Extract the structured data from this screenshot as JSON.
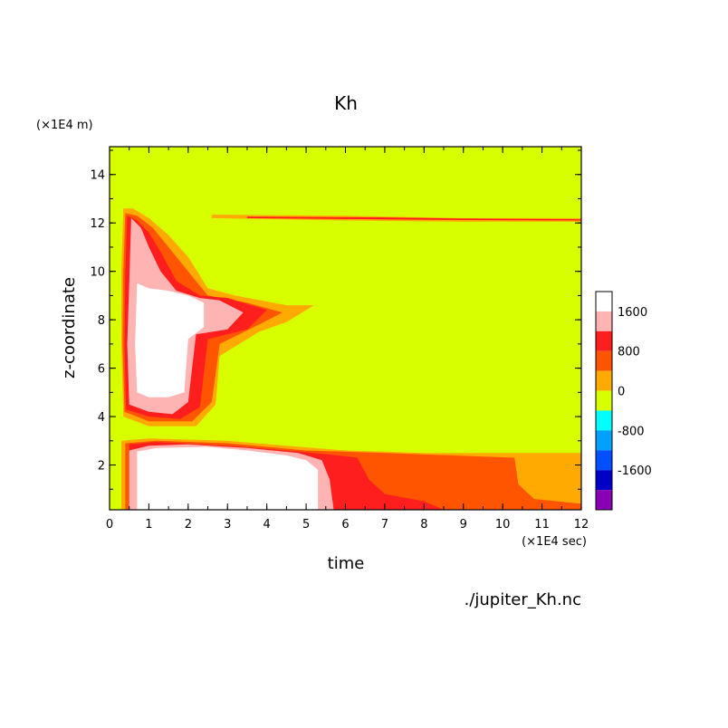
{
  "chart_data": {
    "type": "heatmap",
    "title": "Kh",
    "xlabel": "time",
    "ylabel": "z-coordinate",
    "x_unit": "(×1E4 sec)",
    "y_unit": "(×1E4 m)",
    "source": "./jupiter_Kh.nc",
    "xlim": [
      0,
      12
    ],
    "ylim": [
      0.15,
      15.15
    ],
    "x_ticks": [
      0,
      1,
      2,
      3,
      4,
      5,
      6,
      7,
      8,
      9,
      10,
      11,
      12
    ],
    "y_ticks": [
      2,
      4,
      6,
      8,
      10,
      12,
      14
    ],
    "colorbar": {
      "levels": [
        -2000,
        -1600,
        -1200,
        -800,
        -400,
        0,
        400,
        800,
        1200,
        1600,
        2000
      ],
      "colors": [
        "#8a00b4",
        "#0000c8",
        "#0050ff",
        "#00a0ff",
        "#00ffff",
        "#d8ff00",
        "#ffaa00",
        "#ff5500",
        "#ff1e1e",
        "#ffb4b4"
      ],
      "tick_labels": [
        "1600",
        "800",
        "0",
        "-800",
        "-1600"
      ],
      "tick_values": [
        1600,
        800,
        0,
        -800,
        -1600
      ],
      "above_max_color": "#ffffff"
    },
    "background_color": "#d8ff00",
    "regions": [
      {
        "value": 400,
        "polygon": [
          [
            0.3,
            0.15
          ],
          [
            0.3,
            3.0
          ],
          [
            1.0,
            3.1
          ],
          [
            3.0,
            3.0
          ],
          [
            4.5,
            2.8
          ],
          [
            6.0,
            2.6
          ],
          [
            8.0,
            2.5
          ],
          [
            12.0,
            2.5
          ],
          [
            12.0,
            0.15
          ]
        ]
      },
      {
        "value": 800,
        "polygon": [
          [
            0.4,
            0.15
          ],
          [
            0.4,
            2.9
          ],
          [
            1.2,
            3.0
          ],
          [
            3.0,
            2.9
          ],
          [
            5.0,
            2.6
          ],
          [
            7.0,
            2.5
          ],
          [
            9.5,
            2.35
          ],
          [
            10.3,
            2.3
          ],
          [
            10.4,
            1.2
          ],
          [
            10.8,
            0.6
          ],
          [
            12.0,
            0.4
          ],
          [
            12.0,
            0.15
          ]
        ]
      },
      {
        "value": 1200,
        "polygon": [
          [
            0.5,
            0.15
          ],
          [
            0.5,
            2.85
          ],
          [
            1.2,
            2.95
          ],
          [
            3.0,
            2.8
          ],
          [
            4.5,
            2.6
          ],
          [
            5.5,
            2.45
          ],
          [
            6.3,
            2.3
          ],
          [
            6.6,
            1.4
          ],
          [
            7.0,
            0.8
          ],
          [
            8.0,
            0.5
          ],
          [
            8.5,
            0.15
          ]
        ]
      },
      {
        "value": 1600,
        "polygon": [
          [
            0.5,
            0.15
          ],
          [
            0.5,
            2.6
          ],
          [
            1.0,
            2.8
          ],
          [
            2.0,
            2.85
          ],
          [
            3.5,
            2.7
          ],
          [
            4.8,
            2.5
          ],
          [
            5.4,
            2.2
          ],
          [
            5.6,
            1.4
          ],
          [
            5.7,
            0.15
          ]
        ]
      },
      {
        "value": 2000,
        "polygon": [
          [
            0.7,
            0.15
          ],
          [
            0.7,
            2.55
          ],
          [
            1.2,
            2.7
          ],
          [
            2.5,
            2.75
          ],
          [
            3.5,
            2.6
          ],
          [
            4.5,
            2.4
          ],
          [
            5.0,
            2.2
          ],
          [
            5.3,
            1.8
          ],
          [
            5.3,
            0.15
          ]
        ]
      },
      {
        "value": 400,
        "polygon": [
          [
            0.35,
            4.0
          ],
          [
            0.3,
            7.0
          ],
          [
            0.3,
            10.0
          ],
          [
            0.35,
            12.6
          ],
          [
            0.6,
            12.6
          ],
          [
            1.0,
            12.2
          ],
          [
            1.5,
            11.5
          ],
          [
            2.0,
            10.6
          ],
          [
            2.5,
            9.3
          ],
          [
            3.2,
            9.0
          ],
          [
            4.5,
            8.6
          ],
          [
            5.2,
            8.6
          ],
          [
            4.5,
            7.9
          ],
          [
            3.8,
            7.5
          ],
          [
            2.8,
            6.5
          ],
          [
            2.7,
            4.5
          ],
          [
            2.2,
            3.6
          ],
          [
            1.0,
            3.6
          ]
        ]
      },
      {
        "value": 800,
        "polygon": [
          [
            0.38,
            4.2
          ],
          [
            0.33,
            7.0
          ],
          [
            0.35,
            10.0
          ],
          [
            0.4,
            12.4
          ],
          [
            0.7,
            12.3
          ],
          [
            1.1,
            11.8
          ],
          [
            1.5,
            11.0
          ],
          [
            2.0,
            10.0
          ],
          [
            2.5,
            9.0
          ],
          [
            3.5,
            8.7
          ],
          [
            4.4,
            8.3
          ],
          [
            3.8,
            7.8
          ],
          [
            2.8,
            7.0
          ],
          [
            2.6,
            4.6
          ],
          [
            2.1,
            3.8
          ],
          [
            1.0,
            3.8
          ]
        ]
      },
      {
        "value": 1200,
        "polygon": [
          [
            0.42,
            4.3
          ],
          [
            0.38,
            7.0
          ],
          [
            0.4,
            10.0
          ],
          [
            0.45,
            12.3
          ],
          [
            0.7,
            12.1
          ],
          [
            1.0,
            11.6
          ],
          [
            1.3,
            10.8
          ],
          [
            1.7,
            9.6
          ],
          [
            2.3,
            9.0
          ],
          [
            3.0,
            8.9
          ],
          [
            4.0,
            8.4
          ],
          [
            3.5,
            7.6
          ],
          [
            2.5,
            7.2
          ],
          [
            2.3,
            4.4
          ],
          [
            1.8,
            3.9
          ],
          [
            1.0,
            4.0
          ]
        ]
      },
      {
        "value": 1600,
        "polygon": [
          [
            0.5,
            4.5
          ],
          [
            0.45,
            7.0
          ],
          [
            0.5,
            9.5
          ],
          [
            0.55,
            12.2
          ],
          [
            0.8,
            11.8
          ],
          [
            1.0,
            11.0
          ],
          [
            1.3,
            10.0
          ],
          [
            1.7,
            9.2
          ],
          [
            2.3,
            8.9
          ],
          [
            2.8,
            8.8
          ],
          [
            3.4,
            8.3
          ],
          [
            3.0,
            7.6
          ],
          [
            2.2,
            7.4
          ],
          [
            2.0,
            4.6
          ],
          [
            1.6,
            4.1
          ],
          [
            1.0,
            4.2
          ]
        ]
      },
      {
        "value": 2000,
        "polygon": [
          [
            0.7,
            5.0
          ],
          [
            0.65,
            7.0
          ],
          [
            0.7,
            9.5
          ],
          [
            1.0,
            9.3
          ],
          [
            1.5,
            9.2
          ],
          [
            2.0,
            9.0
          ],
          [
            2.4,
            8.7
          ],
          [
            2.4,
            7.7
          ],
          [
            2.0,
            7.2
          ],
          [
            1.9,
            5.0
          ],
          [
            1.5,
            4.8
          ],
          [
            1.0,
            4.8
          ]
        ]
      },
      {
        "value": 400,
        "polygon": [
          [
            2.6,
            12.35
          ],
          [
            6.0,
            12.3
          ],
          [
            9.0,
            12.2
          ],
          [
            12.0,
            12.2
          ],
          [
            12.0,
            12.05
          ],
          [
            9.0,
            12.05
          ],
          [
            6.0,
            12.1
          ],
          [
            2.6,
            12.2
          ]
        ]
      },
      {
        "value": 1200,
        "polygon": [
          [
            3.5,
            12.26
          ],
          [
            7.0,
            12.23
          ],
          [
            9.0,
            12.18
          ],
          [
            12.0,
            12.15
          ],
          [
            12.0,
            12.1
          ],
          [
            9.0,
            12.12
          ],
          [
            7.0,
            12.15
          ],
          [
            3.5,
            12.2
          ]
        ]
      }
    ]
  }
}
